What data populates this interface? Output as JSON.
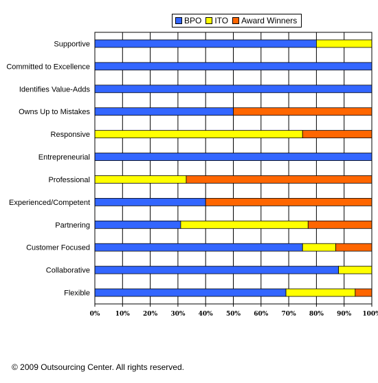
{
  "chart_data": {
    "type": "bar",
    "orientation": "horizontal",
    "stacked": true,
    "percent": true,
    "categories": [
      "Supportive",
      "Committed to Excellence",
      "Identifies Value-Adds",
      "Owns Up to Mistakes",
      "Responsive",
      "Entrepreneurial",
      "Professional",
      "Experienced/Competent",
      "Partnering",
      "Customer Focused",
      "Collaborative",
      "Flexible"
    ],
    "series": [
      {
        "name": "BPO",
        "color": "#3366FF",
        "values": [
          80,
          100,
          100,
          50,
          0,
          100,
          0,
          40,
          31,
          75,
          88,
          69
        ]
      },
      {
        "name": "ITO",
        "color": "#FFFF00",
        "values": [
          20,
          0,
          0,
          0,
          75,
          0,
          33,
          0,
          46,
          12,
          12,
          25
        ]
      },
      {
        "name": "Award Winners",
        "color": "#FF6600",
        "values": [
          0,
          0,
          0,
          50,
          25,
          0,
          67,
          60,
          23,
          13,
          0,
          6
        ]
      }
    ],
    "xlim": [
      0,
      100
    ],
    "x_ticks": [
      "0%",
      "10%",
      "20%",
      "30%",
      "40%",
      "50%",
      "60%",
      "70%",
      "80%",
      "90%",
      "100%"
    ],
    "grid": true,
    "legend_position": "top"
  },
  "footer": {
    "copyright": "© 2009 Outsourcing Center. All rights reserved."
  }
}
